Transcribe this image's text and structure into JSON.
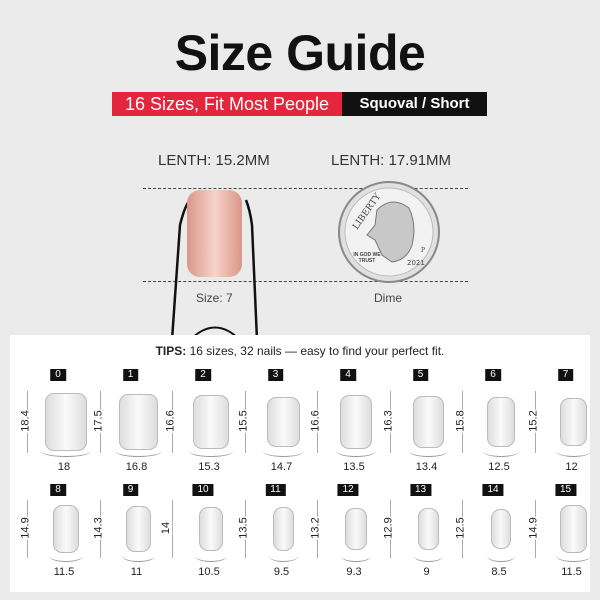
{
  "title": "Size Guide",
  "banner": {
    "left": "16 Sizes, Fit Most People",
    "right": "Squoval  / Short"
  },
  "comparison": {
    "nail_length": "LENTH: 15.2MM",
    "coin_length": "LENTH: 17.91MM",
    "nail_caption": "Size: 7",
    "coin_caption": "Dime",
    "coin_text": {
      "legend": "LIBERTY",
      "motto": "IN GOD WE TRUST",
      "year": "2021",
      "mint": "P"
    }
  },
  "nail_color": "#e8a898",
  "tips": {
    "label": "TIPS:",
    "text": " 16 sizes, 32 nails — easy to find your perfect fit."
  },
  "sizes": [
    {
      "size": "0",
      "length": "18.4",
      "width": "18"
    },
    {
      "size": "1",
      "length": "17.5",
      "width": "16.8"
    },
    {
      "size": "2",
      "length": "16.6",
      "width": "15.3"
    },
    {
      "size": "3",
      "length": "15.5",
      "width": "14.7"
    },
    {
      "size": "4",
      "length": "16.6",
      "width": "13.5"
    },
    {
      "size": "5",
      "length": "16.3",
      "width": "13.4"
    },
    {
      "size": "6",
      "length": "15.8",
      "width": "12.5"
    },
    {
      "size": "7",
      "length": "15.2",
      "width": "12"
    },
    {
      "size": "8",
      "length": "14.9",
      "width": "11.5"
    },
    {
      "size": "9",
      "length": "14.3",
      "width": "11"
    },
    {
      "size": "10",
      "length": "14",
      "width": "10.5"
    },
    {
      "size": "11",
      "length": "13.5",
      "width": "9.5"
    },
    {
      "size": "12",
      "length": "13.2",
      "width": "9.3"
    },
    {
      "size": "13",
      "length": "12.9",
      "width": "9"
    },
    {
      "size": "14",
      "length": "12.5",
      "width": "8.5"
    },
    {
      "size": "15",
      "length": "14.9",
      "width": "11.5"
    }
  ]
}
